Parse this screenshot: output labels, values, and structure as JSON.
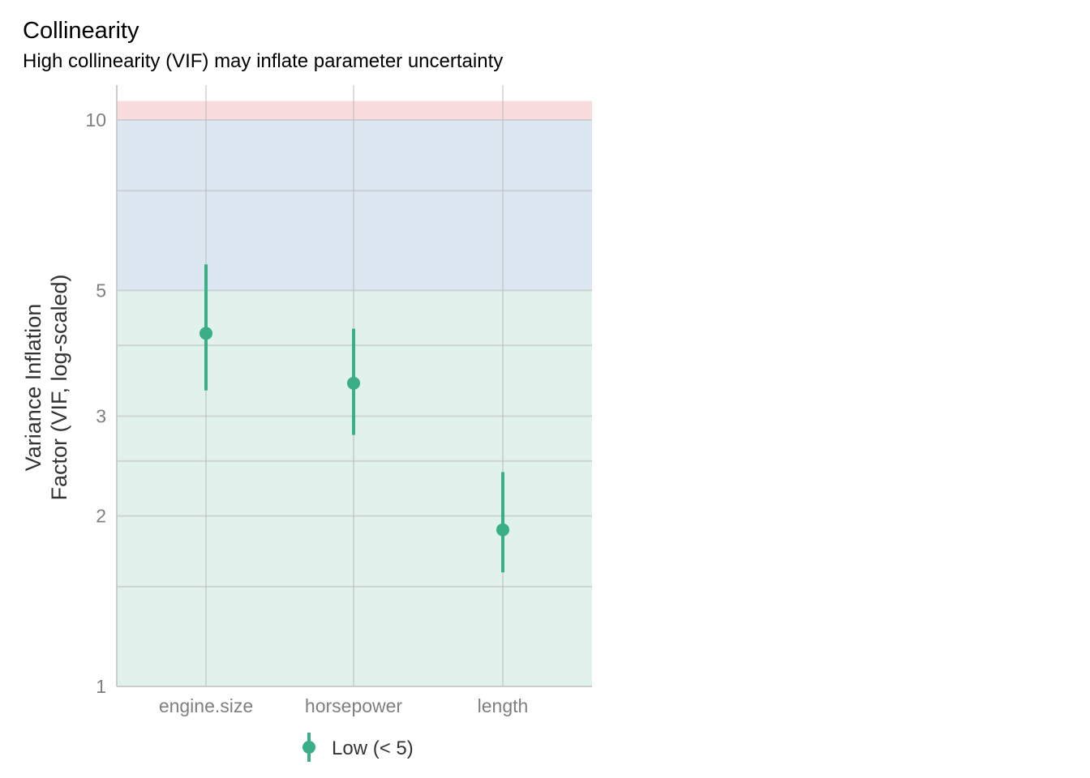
{
  "title": "Collinearity",
  "subtitle": "High collinearity (VIF) may inflate parameter uncertainty",
  "chart_data": {
    "type": "scatter",
    "title": "Collinearity",
    "subtitle": "High collinearity (VIF) may inflate parameter uncertainty",
    "xlabel": "",
    "ylabel": "Variance Inflation Factor (VIF, log-scaled)",
    "ylabel_lines": [
      "Variance Inflation",
      "Factor (VIF, log-scaled)"
    ],
    "y_scale": "log",
    "ylim": [
      1,
      10.8
    ],
    "y_ticks": [
      1,
      2,
      3,
      5,
      10
    ],
    "y_minor_gridlines": [
      1.5,
      2.5,
      4,
      7.5
    ],
    "categories": [
      "engine.size",
      "horsepower",
      "length"
    ],
    "series": [
      {
        "name": "Low (< 5)",
        "color": "#3aaf85",
        "values": [
          4.2,
          3.43,
          1.89
        ],
        "ci_low": [
          3.33,
          2.78,
          1.59
        ],
        "ci_high": [
          5.56,
          4.28,
          2.39
        ]
      }
    ],
    "bands": [
      {
        "from": 1,
        "to": 5,
        "color": "#e1f1eb"
      },
      {
        "from": 5,
        "to": 10,
        "color": "#dde7f1"
      },
      {
        "from": 10,
        "to": 10.8,
        "color": "#f8dcde"
      }
    ],
    "grid": true,
    "legend_position": "bottom"
  }
}
